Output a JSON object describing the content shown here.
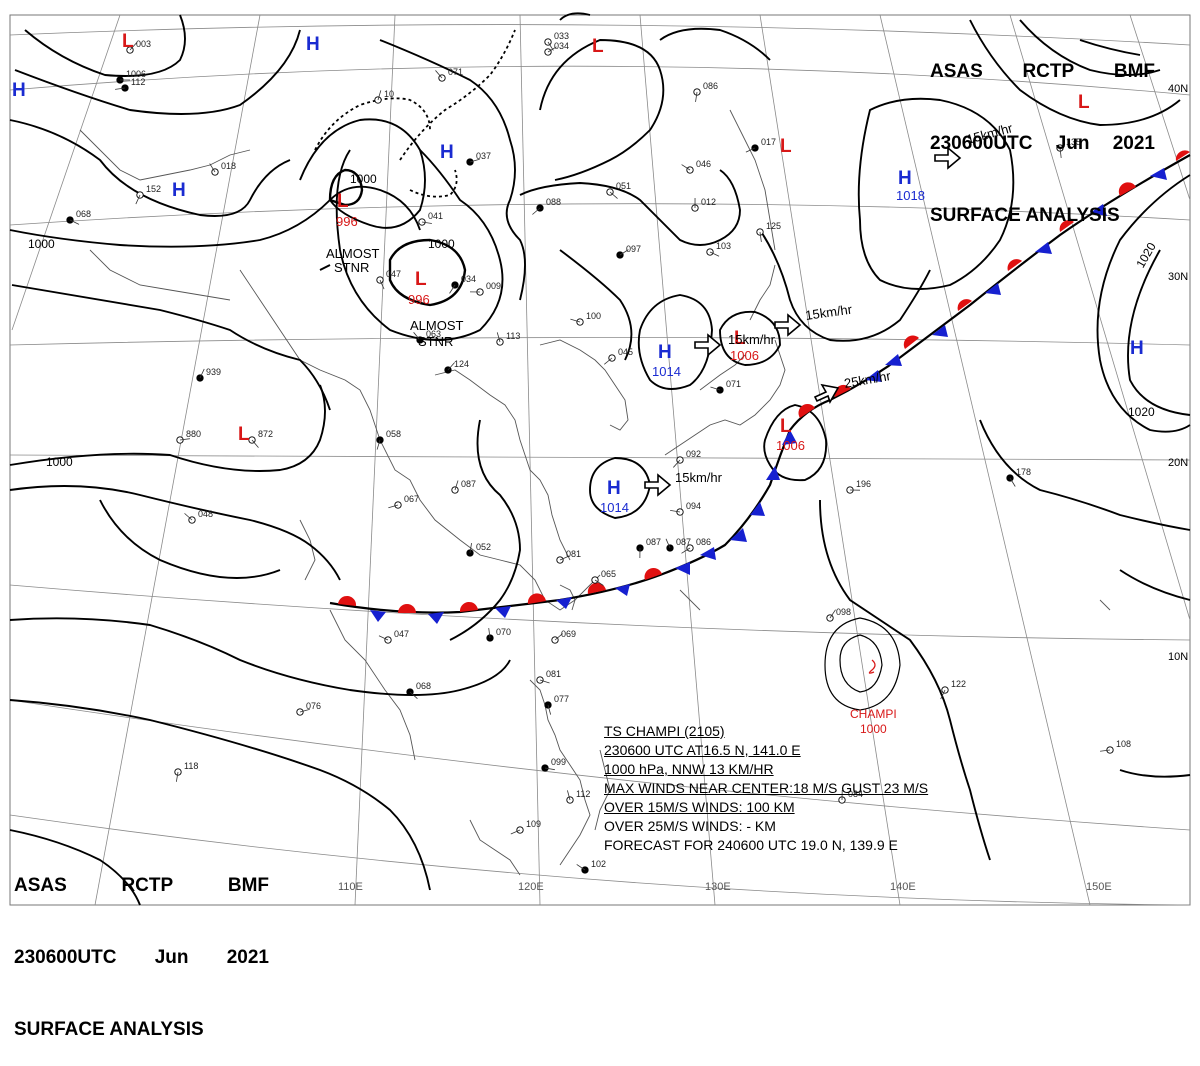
{
  "header": {
    "line1": [
      "ASAS",
      "RCTP",
      "BMF"
    ],
    "line2": [
      "230600UTC",
      "Jun",
      "2021"
    ],
    "line3": "SURFACE ANALYSIS"
  },
  "lat_labels": [
    "40N",
    "30N",
    "20N",
    "10N"
  ],
  "lon_labels": [
    "110E",
    "120E",
    "130E",
    "140E",
    "150E"
  ],
  "isobar_labels": [
    "1000",
    "1000",
    "1000",
    "1000",
    "1020",
    "1020"
  ],
  "high_centers": [
    {
      "letter": "H",
      "value": ""
    },
    {
      "letter": "H",
      "value": ""
    },
    {
      "letter": "H",
      "value": ""
    },
    {
      "letter": "H",
      "value": ""
    },
    {
      "letter": "H",
      "value": "1018"
    },
    {
      "letter": "H",
      "value": "1014"
    },
    {
      "letter": "H",
      "value": "1014"
    },
    {
      "letter": "H",
      "value": ""
    }
  ],
  "low_centers": [
    {
      "letter": "L",
      "value": ""
    },
    {
      "letter": "L",
      "value": ""
    },
    {
      "letter": "L",
      "value": ""
    },
    {
      "letter": "L",
      "value": ""
    },
    {
      "letter": "L",
      "value": "996"
    },
    {
      "letter": "L",
      "value": "996"
    },
    {
      "letter": "L",
      "value": ""
    },
    {
      "letter": "L",
      "value": "1006"
    },
    {
      "letter": "L",
      "value": "1006"
    }
  ],
  "annotations": [
    "ALMOST",
    "STNR",
    "ALMOST",
    "STNR"
  ],
  "motion_labels": [
    "15km/hr",
    "15km/hr",
    "15km/hr",
    "15km/hr",
    "25km/hr"
  ],
  "typhoon": {
    "name": "CHAMPI",
    "pressure": "1000",
    "lines": [
      "TS  CHAMPI  (2105)",
      "230600 UTC  AT16.5 N, 141.0 E",
      "1000 hPa, NNW  13 KM/HR",
      "MAX WINDS NEAR CENTER:18 M/S GUST 23 M/S",
      "OVER 15M/S WINDS: 100 KM",
      "OVER 25M/S WINDS: - KM",
      "FORECAST FOR 240600 UTC 19.0 N, 139.9 E"
    ]
  },
  "colors": {
    "high": "#1a2bd1",
    "low": "#d81818",
    "isobar": "#000000",
    "front_warm": "#e01010",
    "front_cold": "#1620d0",
    "grid": "#8a8a8a",
    "coast": "#555555"
  },
  "stations": [
    "1006",
    "033",
    "152",
    "112",
    "071",
    "10",
    "037",
    "051",
    "086",
    "017",
    "046",
    "012",
    "097",
    "103",
    "125",
    "088",
    "100",
    "113",
    "124",
    "041",
    "047",
    "034",
    "009",
    "018",
    "939",
    "880",
    "872",
    "058",
    "067",
    "048",
    "052",
    "081",
    "065",
    "087",
    "086",
    "047",
    "070",
    "069",
    "081",
    "077",
    "092",
    "094",
    "087",
    "098",
    "196",
    "178",
    "122",
    "108",
    "063",
    "087",
    "076",
    "068",
    "118",
    "109",
    "102",
    "084",
    "034",
    "068",
    "135",
    "045",
    "071",
    "112",
    "003",
    "099"
  ]
}
